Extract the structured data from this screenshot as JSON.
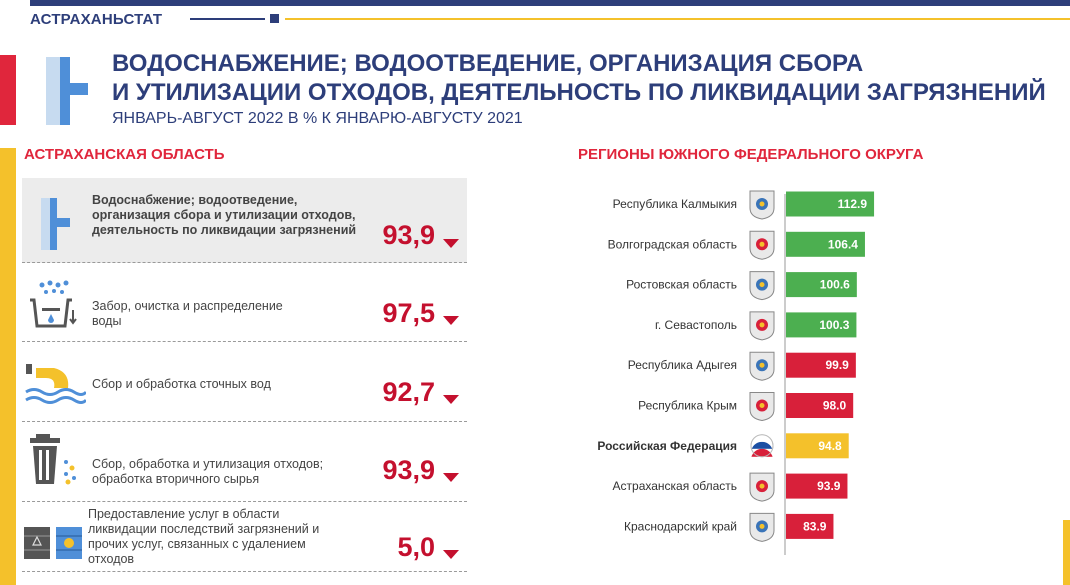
{
  "header": {
    "org": "АСТРАХАНЬСТАТ",
    "title_line1": "ВОДОСНАБЖЕНИЕ; ВОДООТВЕДЕНИЕ, ОРГАНИЗАЦИЯ СБОРА",
    "title_line2": "И УТИЛИЗАЦИИ ОТХОДОВ, ДЕЯТЕЛЬНОСТЬ ПО ЛИКВИДАЦИИ ЗАГРЯЗНЕНИЙ",
    "subtitle": "ЯНВАРЬ-АВГУСТ 2022 В % К ЯНВАРЮ-АВГУСТУ 2021"
  },
  "left": {
    "heading": "АСТРАХАНСКАЯ ОБЛАСТЬ",
    "items": [
      {
        "icon": "water-pipe-icon",
        "label": "Водоснабжение; водоотведение, организация сбора и утилизации отходов, деятельность по ликвидации загрязнений",
        "value": "93,9"
      },
      {
        "icon": "water-purification-icon",
        "label": "Забор, очистка и распределение воды",
        "value": "97,5"
      },
      {
        "icon": "wastewater-icon",
        "label": "Сбор и обработка сточных вод",
        "value": "92,7"
      },
      {
        "icon": "trash-bin-icon",
        "label": "Сбор, обработка и утилизация отходов; обработка вторичного сырья",
        "value": "93,9"
      },
      {
        "icon": "hazard-barrels-icon",
        "label": "Предоставление услуг в области ликвидации последствий загрязнений и прочих услуг, связанных с удалением отходов",
        "value": "5,0"
      }
    ],
    "trend_color": "#c4102e"
  },
  "right": {
    "heading": "РЕГИОНЫ ЮЖНОГО ФЕДЕРАЛЬНОГО ОКРУГА"
  },
  "colors": {
    "navy": "#2d3e7a",
    "red": "#e0263c",
    "yellow": "#f4c12b",
    "green": "#4caf50",
    "bar_red": "#d8203a"
  },
  "chart_data": {
    "type": "bar",
    "orientation": "horizontal",
    "categories": [
      "Республика Калмыкия",
      "Волгоградская область",
      "Ростовская область",
      "г. Севастополь",
      "Республика Адыгея",
      "Республика Крым",
      "Российская Федерация",
      "Астраханская область",
      "Краснодарский край"
    ],
    "values": [
      112.9,
      106.4,
      100.6,
      100.3,
      99.9,
      98.0,
      94.8,
      93.9,
      83.9
    ],
    "value_labels": [
      "112.9",
      "106.4",
      "100.6",
      "100.3",
      "99.9",
      "98.0",
      "94.8",
      "93.9",
      "83.9"
    ],
    "bar_colors": [
      "#4caf50",
      "#4caf50",
      "#4caf50",
      "#4caf50",
      "#d8203a",
      "#d8203a",
      "#f4c12b",
      "#d8203a",
      "#d8203a"
    ],
    "emblems": [
      "kalmykia-emblem-icon",
      "volgograd-emblem-icon",
      "rostov-emblem-icon",
      "sevastopol-emblem-icon",
      "adygea-emblem-icon",
      "crimea-emblem-icon",
      "russia-flag-icon",
      "astrakhan-emblem-icon",
      "krasnodar-emblem-icon"
    ],
    "bold_category": "Российская Федерация"
  }
}
